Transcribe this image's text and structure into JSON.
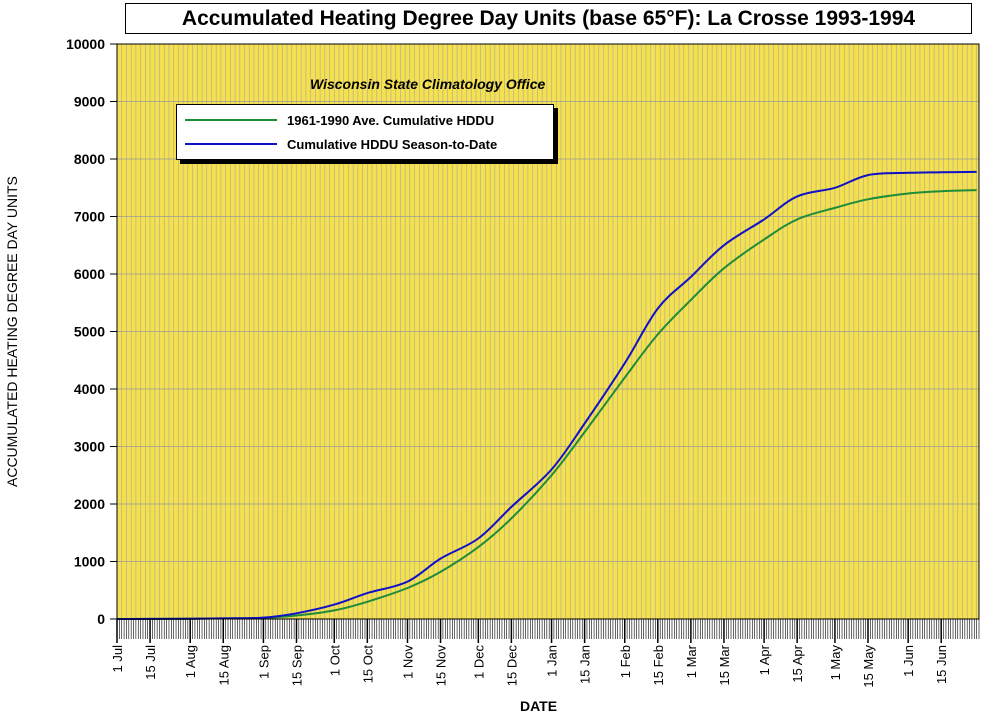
{
  "chart_data": {
    "type": "line",
    "title": "Accumulated Heating Degree Day Units (base 65°F): La Crosse 1993-1994",
    "subtitle": "Wisconsin State Climatology Office",
    "xlabel": "DATE",
    "ylabel": "ACCUMULATED HEATING DEGREE DAY UNITS",
    "ylim": [
      0,
      10000
    ],
    "xlim": [
      "1993-07-01",
      "1994-06-30"
    ],
    "y_ticks": [
      0,
      1000,
      2000,
      3000,
      4000,
      5000,
      6000,
      7000,
      8000,
      9000,
      10000
    ],
    "x_tick_labels": [
      "1 Jul",
      "15 Jul",
      "1 Aug",
      "15 Aug",
      "1 Sep",
      "15 Sep",
      "1 Oct",
      "15 Oct",
      "1 Nov",
      "15 Nov",
      "1 Dec",
      "15 Dec",
      "1 Jan",
      "15 Jan",
      "1 Feb",
      "15 Feb",
      "1 Mar",
      "15 Mar",
      "1 Apr",
      "15 Apr",
      "1 May",
      "15 May",
      "1 Jun",
      "15 Jun"
    ],
    "x_tick_dates": [
      "1993-07-01",
      "1993-07-15",
      "1993-08-01",
      "1993-08-15",
      "1993-09-01",
      "1993-09-15",
      "1993-10-01",
      "1993-10-15",
      "1993-11-01",
      "1993-11-15",
      "1993-12-01",
      "1993-12-15",
      "1994-01-01",
      "1994-01-15",
      "1994-02-01",
      "1994-02-15",
      "1994-03-01",
      "1994-03-15",
      "1994-04-01",
      "1994-04-15",
      "1994-05-01",
      "1994-05-15",
      "1994-06-01",
      "1994-06-15"
    ],
    "grid": true,
    "legend_position": "top-left",
    "background_color": "#f5e04d",
    "grid_color": "#a8a8a8",
    "series": [
      {
        "name": "1961-1990 Ave. Cumulative HDDU",
        "color": "#1e8c3a",
        "points": [
          [
            "1993-07-01",
            0
          ],
          [
            "1993-08-01",
            5
          ],
          [
            "1993-08-15",
            10
          ],
          [
            "1993-09-01",
            20
          ],
          [
            "1993-09-15",
            60
          ],
          [
            "1993-10-01",
            150
          ],
          [
            "1993-10-15",
            300
          ],
          [
            "1993-11-01",
            540
          ],
          [
            "1993-11-15",
            820
          ],
          [
            "1993-12-01",
            1250
          ],
          [
            "1993-12-15",
            1750
          ],
          [
            "1994-01-01",
            2500
          ],
          [
            "1994-01-15",
            3250
          ],
          [
            "1994-02-01",
            4200
          ],
          [
            "1994-02-15",
            4950
          ],
          [
            "1994-03-01",
            5550
          ],
          [
            "1994-03-15",
            6100
          ],
          [
            "1994-04-01",
            6600
          ],
          [
            "1994-04-15",
            6950
          ],
          [
            "1994-05-01",
            7150
          ],
          [
            "1994-05-15",
            7300
          ],
          [
            "1994-06-01",
            7400
          ],
          [
            "1994-06-15",
            7440
          ],
          [
            "1994-06-30",
            7460
          ]
        ]
      },
      {
        "name": "Cumulative HDDU Season-to-Date",
        "color": "#1010c8",
        "points": [
          [
            "1993-07-01",
            0
          ],
          [
            "1993-08-01",
            5
          ],
          [
            "1993-08-15",
            10
          ],
          [
            "1993-09-01",
            25
          ],
          [
            "1993-09-15",
            100
          ],
          [
            "1993-10-01",
            250
          ],
          [
            "1993-10-15",
            450
          ],
          [
            "1993-11-01",
            650
          ],
          [
            "1993-11-15",
            1050
          ],
          [
            "1993-12-01",
            1400
          ],
          [
            "1993-12-15",
            1950
          ],
          [
            "1994-01-01",
            2600
          ],
          [
            "1994-01-15",
            3400
          ],
          [
            "1994-02-01",
            4450
          ],
          [
            "1994-02-15",
            5400
          ],
          [
            "1994-03-01",
            5950
          ],
          [
            "1994-03-15",
            6500
          ],
          [
            "1994-04-01",
            6950
          ],
          [
            "1994-04-15",
            7350
          ],
          [
            "1994-05-01",
            7500
          ],
          [
            "1994-05-15",
            7720
          ],
          [
            "1994-06-01",
            7760
          ],
          [
            "1994-06-15",
            7770
          ],
          [
            "1994-06-30",
            7775
          ]
        ]
      }
    ]
  }
}
